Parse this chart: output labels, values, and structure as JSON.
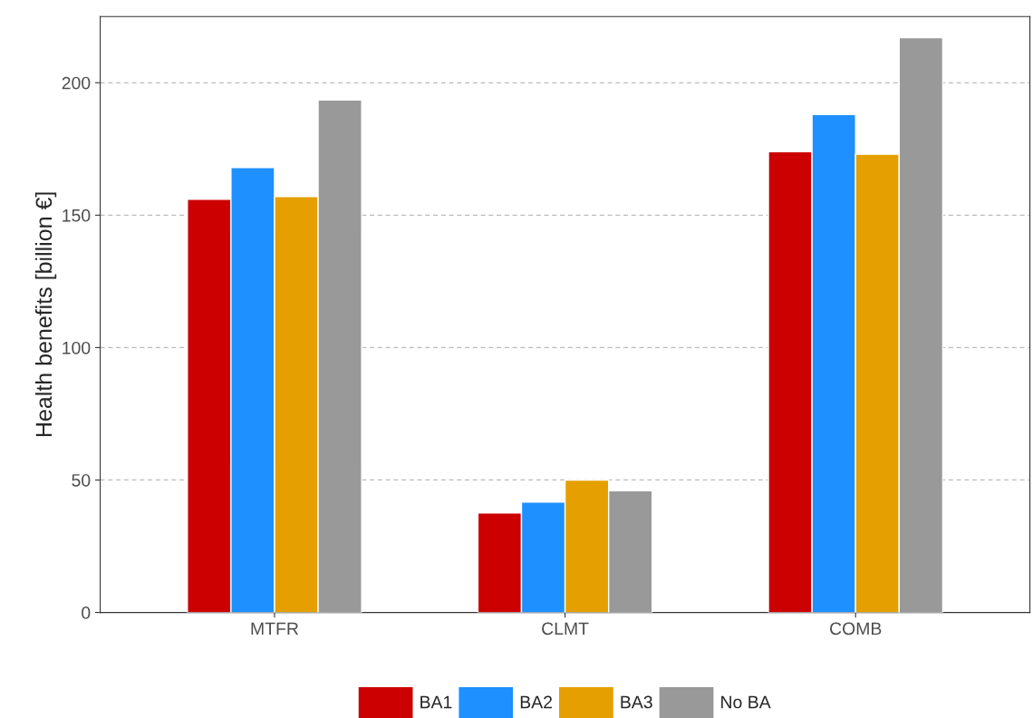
{
  "chart_data": {
    "type": "bar",
    "ylabel": "Health benefits [billion €]",
    "categories": [
      "MTFR",
      "CLMT",
      "COMB"
    ],
    "series": [
      {
        "name": "BA1",
        "color": "#cc0000",
        "values": [
          156,
          37.6,
          174
        ]
      },
      {
        "name": "BA2",
        "color": "#1e90ff",
        "values": [
          168,
          41.7,
          188
        ]
      },
      {
        "name": "BA3",
        "color": "#e5a000",
        "values": [
          157,
          50,
          173
        ]
      },
      {
        "name": "No BA",
        "color": "#999999",
        "values": [
          193.5,
          46,
          217
        ]
      }
    ],
    "ylim": [
      0,
      225
    ],
    "yticks": [
      0,
      50,
      100,
      150,
      200
    ],
    "grid": "y",
    "legend": "bottom"
  }
}
